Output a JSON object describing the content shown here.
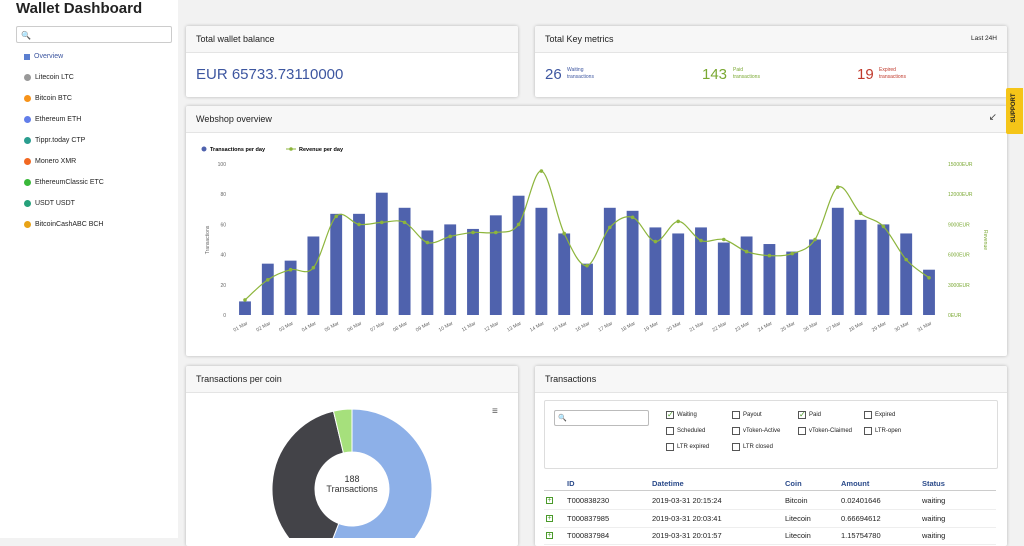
{
  "header": {
    "title": "Wallet Dashboard"
  },
  "sidebar": {
    "items": [
      "Overview",
      "Litecoin LTC",
      "Bitcoin BTC",
      "Ethereum ETH",
      "Tippr.today CTP",
      "Monero XMR",
      "EthereumClassic ETC",
      "USDT USDT",
      "BitcoinCashABC BCH"
    ]
  },
  "balance": {
    "title": "Total wallet balance",
    "value": "EUR 65733.73110000"
  },
  "metrics": {
    "title": "Total Key metrics",
    "period": "Last 24H",
    "items": [
      {
        "value": 26,
        "line1": "Waiting",
        "line2": "transactions"
      },
      {
        "value": 143,
        "line1": "Paid",
        "line2": "transactions"
      },
      {
        "value": 19,
        "line1": "Expired",
        "line2": "transactions"
      }
    ]
  },
  "support": "SUPPORT",
  "chart_data": [
    {
      "type": "bar_line",
      "title": "Webshop overview",
      "categories": [
        "01 Mar",
        "02 Mar",
        "03 Mar",
        "04 Mar",
        "05 Mar",
        "06 Mar",
        "07 Mar",
        "08 Mar",
        "09 Mar",
        "10 Mar",
        "11 Mar",
        "12 Mar",
        "13 Mar",
        "14 Mar",
        "15 Mar",
        "16 Mar",
        "17 Mar",
        "18 Mar",
        "19 Mar",
        "20 Mar",
        "21 Mar",
        "22 Mar",
        "23 Mar",
        "24 Mar",
        "25 Mar",
        "26 Mar",
        "27 Mar",
        "28 Mar",
        "29 Mar",
        "30 Mar",
        "31 Mar"
      ],
      "series": [
        {
          "name": "Transactions per day",
          "color": "#4f62ad",
          "values": [
            9,
            34,
            36,
            52,
            67,
            67,
            81,
            71,
            56,
            60,
            57,
            66,
            79,
            71,
            54,
            34,
            71,
            69,
            58,
            54,
            58,
            48,
            52,
            47,
            42,
            50,
            71,
            63,
            60,
            54,
            30
          ]
        },
        {
          "name": "Revenue per day",
          "color": "#8db53c",
          "axis": "y2",
          "values": [
            1500,
            3500,
            4500,
            4700,
            9800,
            9000,
            9200,
            9200,
            7200,
            7800,
            8200,
            8200,
            9000,
            14300,
            8100,
            4900,
            8700,
            9700,
            7300,
            9300,
            7400,
            7500,
            6300,
            5900,
            6100,
            7500,
            12700,
            10100,
            8800,
            5500,
            3700
          ]
        }
      ],
      "ylabel": "Transactions",
      "y2label": "Revenue",
      "ylim": [
        0,
        100
      ],
      "yticks": [
        0,
        20,
        40,
        60,
        80,
        100
      ],
      "y2lim": [
        0,
        15000
      ],
      "y2ticks": [
        {
          "value": 0,
          "label": "0EUR"
        },
        {
          "value": 3000,
          "label": "3000EUR"
        },
        {
          "value": 6000,
          "label": "6000EUR"
        },
        {
          "value": 9000,
          "label": "9000EUR"
        },
        {
          "value": 12000,
          "label": "12000EUR"
        },
        {
          "value": 15000,
          "label": "15000EUR"
        }
      ]
    },
    {
      "type": "donut",
      "title": "Transactions per coin",
      "values": [
        105,
        76,
        7
      ],
      "colors": [
        "#8db0e8",
        "#434348",
        "#a6e07c"
      ],
      "annotation_value": 188,
      "annotation_label": "Transactions"
    }
  ],
  "transactions": {
    "title": "Transactions",
    "filters": [
      {
        "label": "Waiting",
        "checked": true
      },
      {
        "label": "Payout",
        "checked": false
      },
      {
        "label": "Paid",
        "checked": true
      },
      {
        "label": "Expired",
        "checked": false
      },
      {
        "label": "Scheduled",
        "checked": false
      },
      {
        "label": "vToken-Active",
        "checked": false
      },
      {
        "label": "vToken-Claimed",
        "checked": false
      },
      {
        "label": "LTR-open",
        "checked": false
      },
      {
        "label": "LTR expired",
        "checked": false
      },
      {
        "label": "LTR closed",
        "checked": false
      }
    ],
    "columns": [
      "ID",
      "Datetime",
      "Coin",
      "Amount",
      "Status"
    ],
    "rows": [
      [
        "T000838230",
        "2019-03-31 20:15:24",
        "Bitcoin",
        "0.02401646",
        "waiting"
      ],
      [
        "T000837985",
        "2019-03-31 20:03:41",
        "Litecoin",
        "0.66694612",
        "waiting"
      ],
      [
        "T000837984",
        "2019-03-31 20:01:57",
        "Litecoin",
        "1.15754780",
        "waiting"
      ]
    ]
  }
}
